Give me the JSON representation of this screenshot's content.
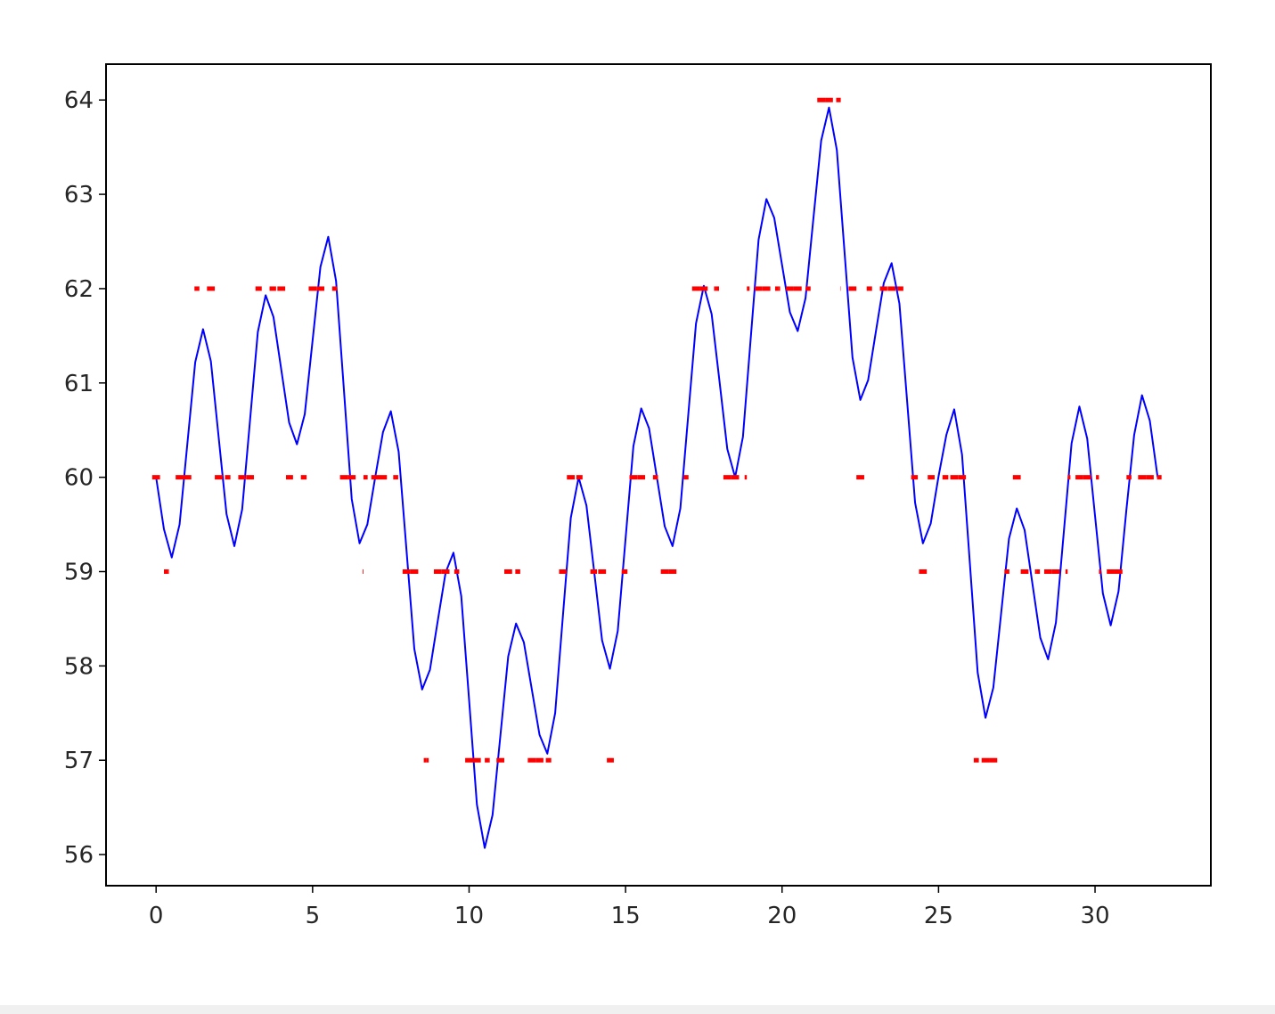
{
  "chart_data": {
    "type": "line",
    "x": [
      0,
      0.25,
      0.5,
      0.75,
      1,
      1.25,
      1.5,
      1.75,
      2,
      2.25,
      2.5,
      2.75,
      3,
      3.25,
      3.5,
      3.75,
      4,
      4.25,
      4.5,
      4.75,
      5,
      5.25,
      5.5,
      5.75,
      6,
      6.25,
      6.5,
      6.75,
      7,
      7.25,
      7.5,
      7.75,
      8,
      8.25,
      8.5,
      8.75,
      9,
      9.25,
      9.5,
      9.75,
      10,
      10.25,
      10.5,
      10.75,
      11,
      11.25,
      11.5,
      11.75,
      12,
      12.25,
      12.5,
      12.75,
      13,
      13.25,
      13.5,
      13.75,
      14,
      14.25,
      14.5,
      14.75,
      15,
      15.25,
      15.5,
      15.75,
      16,
      16.25,
      16.5,
      16.75,
      17,
      17.25,
      17.5,
      17.75,
      18,
      18.25,
      18.5,
      18.75,
      19,
      19.25,
      19.5,
      19.75,
      20,
      20.25,
      20.5,
      20.75,
      21,
      21.25,
      21.5,
      21.75,
      22,
      22.25,
      22.5,
      22.75,
      23,
      23.25,
      23.5,
      23.75,
      24,
      24.25,
      24.5,
      24.75,
      25,
      25.25,
      25.5,
      25.75,
      26,
      26.25,
      26.5,
      26.75,
      27,
      27.25,
      27.5,
      27.75,
      28,
      28.25,
      28.5,
      28.75,
      29,
      29.25,
      29.5,
      29.75,
      30,
      30.25,
      30.5,
      30.75,
      31,
      31.25,
      31.5,
      31.75,
      32
    ],
    "series": [
      {
        "color": "#0000ff",
        "style": "solid",
        "values": [
          60,
          59.45,
          59.15,
          59.5,
          60.36,
          61.22,
          61.57,
          61.23,
          60.42,
          59.61,
          59.27,
          59.66,
          60.6,
          61.54,
          61.93,
          61.7,
          61.14,
          60.58,
          60.35,
          60.67,
          61.45,
          62.23,
          62.55,
          62.08,
          60.93,
          59.77,
          59.3,
          59.5,
          60,
          60.48,
          60.7,
          60.27,
          59.23,
          58.18,
          57.75,
          57.96,
          58.48,
          58.99,
          59.2,
          58.74,
          57.64,
          56.53,
          56.07,
          56.42,
          57.26,
          58.1,
          58.45,
          58.25,
          57.76,
          57.27,
          57.07,
          57.5,
          58.54,
          59.57,
          60,
          59.7,
          58.99,
          58.27,
          57.97,
          58.37,
          59.35,
          60.33,
          60.73,
          60.52,
          60,
          59.48,
          59.27,
          59.67,
          60.65,
          61.63,
          62.03,
          61.73,
          61.02,
          60.3,
          60,
          60.43,
          61.48,
          62.52,
          62.95,
          62.75,
          62.25,
          61.75,
          61.55,
          61.9,
          62.74,
          63.57,
          63.92,
          63.47,
          62.37,
          61.27,
          60.82,
          61.03,
          61.55,
          62.06,
          62.27,
          61.84,
          60.79,
          59.73,
          59.3,
          59.51,
          60.01,
          60.45,
          60.72,
          60.24,
          59.09,
          57.93,
          57.45,
          57.77,
          58.56,
          59.35,
          59.67,
          59.44,
          58.87,
          58.3,
          58.07,
          58.46,
          59.41,
          60.36,
          60.75,
          60.41,
          59.59,
          58.77,
          58.43,
          58.79,
          59.65,
          60.45,
          60.87,
          60.6,
          60
        ]
      },
      {
        "color": "#ff0000",
        "style": "dashed",
        "values": [
          60,
          59,
          59,
          60,
          60,
          62,
          62,
          62,
          60,
          60,
          59,
          60,
          60,
          62,
          62,
          62,
          62,
          60,
          60,
          60,
          62,
          62,
          62,
          62,
          60,
          60,
          59,
          60,
          60,
          60,
          60,
          60,
          59,
          59,
          57,
          57,
          59,
          59,
          59,
          59,
          57,
          57,
          57,
          57,
          57,
          59,
          59,
          59,
          57,
          57,
          57,
          57,
          59,
          60,
          60,
          60,
          59,
          59,
          57,
          59,
          59,
          60,
          60,
          60,
          60,
          59,
          59,
          60,
          60,
          62,
          62,
          62,
          62,
          60,
          60,
          60,
          62,
          62,
          62,
          62,
          62,
          62,
          62,
          62,
          62,
          64,
          64,
          64,
          62,
          62,
          60,
          62,
          62,
          62,
          62,
          62,
          60,
          60,
          59,
          60,
          60,
          60,
          60,
          60,
          59,
          57,
          57,
          57,
          59,
          59,
          60,
          59,
          59,
          59,
          59,
          59,
          59,
          60,
          60,
          60,
          60,
          59,
          59,
          59,
          60,
          60,
          60,
          60,
          60
        ]
      }
    ],
    "xlim": [
      -1.6,
      33.7
    ],
    "ylim": [
      55.67,
      64.38
    ],
    "xticks": [
      0,
      5,
      10,
      15,
      20,
      25,
      30
    ],
    "yticks": [
      56,
      57,
      58,
      59,
      60,
      61,
      62,
      63,
      64
    ],
    "grid": false
  }
}
